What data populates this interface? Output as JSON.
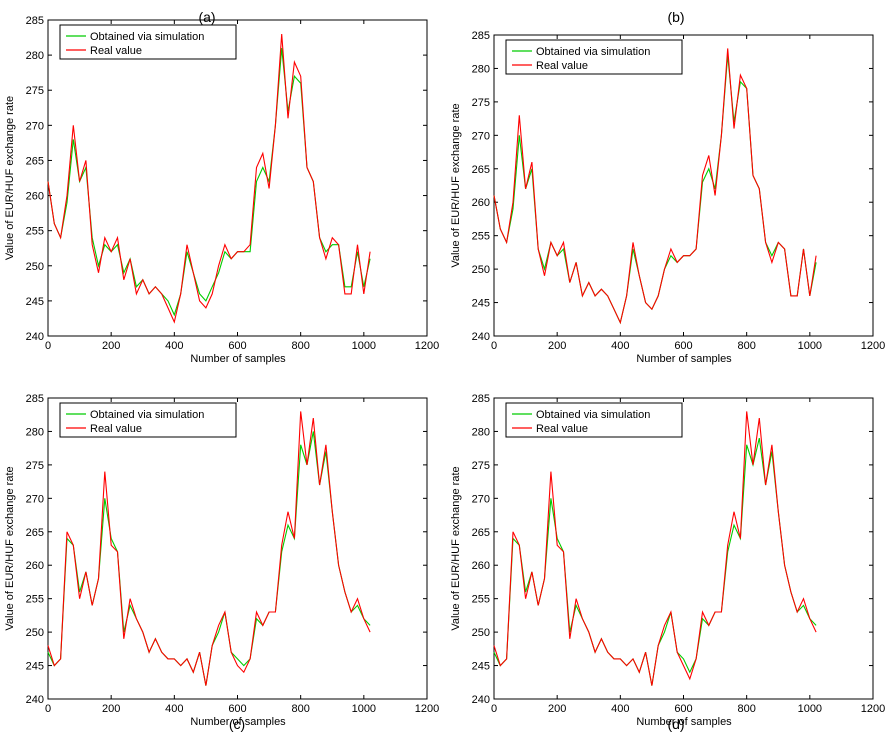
{
  "chart_data": [
    {
      "type": "line",
      "panel_label": "(a)",
      "xlabel": "Number of samples",
      "ylabel": "Value of EUR/HUF exchange rate",
      "xlim": [
        0,
        1200
      ],
      "ylim": [
        240,
        285
      ],
      "xticks": [
        0,
        200,
        400,
        600,
        800,
        1000,
        1200
      ],
      "yticks": [
        240,
        245,
        250,
        255,
        260,
        265,
        270,
        275,
        280,
        285
      ],
      "legend": {
        "position": "top-left",
        "entries": [
          "Obtained via simulation",
          "Real value"
        ]
      },
      "grid": false,
      "series": [
        {
          "name": "Obtained via simulation",
          "color": "#00cc00",
          "x": [
            0,
            20,
            40,
            60,
            80,
            100,
            120,
            140,
            160,
            180,
            200,
            220,
            240,
            260,
            280,
            300,
            320,
            340,
            360,
            380,
            400,
            420,
            440,
            460,
            480,
            500,
            520,
            540,
            560,
            580,
            600,
            620,
            640,
            660,
            680,
            700,
            720,
            740,
            760,
            780,
            800,
            820,
            840,
            860,
            880,
            900,
            920,
            940,
            960,
            980,
            1000,
            1020
          ],
          "y": [
            262,
            256,
            254,
            259,
            268,
            262,
            264,
            254,
            250,
            253,
            252,
            253,
            249,
            251,
            247,
            248,
            246,
            247,
            246,
            245,
            243,
            246,
            252,
            249,
            246,
            245,
            247,
            249,
            252,
            251,
            252,
            252,
            252,
            262,
            264,
            262,
            270,
            281,
            272,
            277,
            276,
            264,
            262,
            254,
            252,
            253,
            253,
            247,
            247,
            252,
            247,
            251
          ]
        },
        {
          "name": "Real value",
          "color": "#ff0000",
          "x": [
            0,
            20,
            40,
            60,
            80,
            100,
            120,
            140,
            160,
            180,
            200,
            220,
            240,
            260,
            280,
            300,
            320,
            340,
            360,
            380,
            400,
            420,
            440,
            460,
            480,
            500,
            520,
            540,
            560,
            580,
            600,
            620,
            640,
            660,
            680,
            700,
            720,
            740,
            760,
            780,
            800,
            820,
            840,
            860,
            880,
            900,
            920,
            940,
            960,
            980,
            1000,
            1020
          ],
          "y": [
            262,
            256,
            254,
            260,
            270,
            262,
            265,
            253,
            249,
            254,
            252,
            254,
            248,
            251,
            246,
            248,
            246,
            247,
            246,
            244,
            242,
            246,
            253,
            249,
            245,
            244,
            246,
            250,
            253,
            251,
            252,
            252,
            253,
            264,
            266,
            261,
            270,
            283,
            271,
            279,
            277,
            264,
            262,
            254,
            251,
            254,
            253,
            246,
            246,
            253,
            246,
            252
          ]
        }
      ]
    },
    {
      "type": "line",
      "panel_label": "(b)",
      "xlabel": "Number of samples",
      "ylabel": "Value of EUR/HUF exchange rate",
      "xlim": [
        0,
        1200
      ],
      "ylim": [
        240,
        285
      ],
      "xticks": [
        0,
        200,
        400,
        600,
        800,
        1000,
        1200
      ],
      "yticks": [
        240,
        245,
        250,
        255,
        260,
        265,
        270,
        275,
        280,
        285
      ],
      "legend": {
        "position": "top-left",
        "entries": [
          "Obtained via simulation",
          "Real value"
        ]
      },
      "grid": false,
      "series": [
        {
          "name": "Obtained via simulation",
          "color": "#00cc00",
          "x": [
            0,
            20,
            40,
            60,
            80,
            100,
            120,
            140,
            160,
            180,
            200,
            220,
            240,
            260,
            280,
            300,
            320,
            340,
            360,
            380,
            400,
            420,
            440,
            460,
            480,
            500,
            520,
            540,
            560,
            580,
            600,
            620,
            640,
            660,
            680,
            700,
            720,
            740,
            760,
            780,
            800,
            820,
            840,
            860,
            880,
            900,
            920,
            940,
            960,
            980,
            1000,
            1020
          ],
          "y": [
            261,
            256,
            254,
            259,
            270,
            262,
            265,
            253,
            250,
            254,
            252,
            253,
            248,
            251,
            246,
            248,
            246,
            247,
            246,
            244,
            242,
            246,
            253,
            249,
            245,
            244,
            246,
            250,
            252,
            251,
            252,
            252,
            253,
            263,
            265,
            262,
            270,
            282,
            272,
            278,
            277,
            264,
            262,
            254,
            252,
            254,
            253,
            246,
            246,
            253,
            246,
            251
          ]
        },
        {
          "name": "Real value",
          "color": "#ff0000",
          "x": [
            0,
            20,
            40,
            60,
            80,
            100,
            120,
            140,
            160,
            180,
            200,
            220,
            240,
            260,
            280,
            300,
            320,
            340,
            360,
            380,
            400,
            420,
            440,
            460,
            480,
            500,
            520,
            540,
            560,
            580,
            600,
            620,
            640,
            660,
            680,
            700,
            720,
            740,
            760,
            780,
            800,
            820,
            840,
            860,
            880,
            900,
            920,
            940,
            960,
            980,
            1000,
            1020
          ],
          "y": [
            261,
            256,
            254,
            260,
            273,
            262,
            266,
            253,
            249,
            254,
            252,
            254,
            248,
            251,
            246,
            248,
            246,
            247,
            246,
            244,
            242,
            246,
            254,
            249,
            245,
            244,
            246,
            250,
            253,
            251,
            252,
            252,
            253,
            264,
            267,
            261,
            270,
            283,
            271,
            279,
            277,
            264,
            262,
            254,
            251,
            254,
            253,
            246,
            246,
            253,
            246,
            252
          ]
        }
      ]
    },
    {
      "type": "line",
      "panel_label": "(c)",
      "xlabel": "Number of samples",
      "ylabel": "Value of EUR/HUF exchange rate",
      "xlim": [
        0,
        1200
      ],
      "ylim": [
        240,
        285
      ],
      "xticks": [
        0,
        200,
        400,
        600,
        800,
        1000,
        1200
      ],
      "yticks": [
        240,
        245,
        250,
        255,
        260,
        265,
        270,
        275,
        280,
        285
      ],
      "legend": {
        "position": "top-left",
        "entries": [
          "Obtained via simulation",
          "Real value"
        ]
      },
      "grid": false,
      "series": [
        {
          "name": "Obtained via simulation",
          "color": "#00cc00",
          "x": [
            0,
            20,
            40,
            60,
            80,
            100,
            120,
            140,
            160,
            180,
            200,
            220,
            240,
            260,
            280,
            300,
            320,
            340,
            360,
            380,
            400,
            420,
            440,
            460,
            480,
            500,
            520,
            540,
            560,
            580,
            600,
            620,
            640,
            660,
            680,
            700,
            720,
            740,
            760,
            780,
            800,
            820,
            840,
            860,
            880,
            900,
            920,
            940,
            960,
            980,
            1000,
            1020
          ],
          "y": [
            247,
            245,
            246,
            264,
            263,
            256,
            259,
            254,
            258,
            270,
            264,
            262,
            250,
            254,
            252,
            250,
            247,
            249,
            247,
            246,
            246,
            245,
            246,
            244,
            247,
            242,
            248,
            250,
            253,
            247,
            246,
            245,
            246,
            252,
            251,
            253,
            253,
            262,
            266,
            264,
            278,
            275,
            280,
            272,
            277,
            268,
            260,
            256,
            253,
            254,
            252,
            251
          ]
        },
        {
          "name": "Real value",
          "color": "#ff0000",
          "x": [
            0,
            20,
            40,
            60,
            80,
            100,
            120,
            140,
            160,
            180,
            200,
            220,
            240,
            260,
            280,
            300,
            320,
            340,
            360,
            380,
            400,
            420,
            440,
            460,
            480,
            500,
            520,
            540,
            560,
            580,
            600,
            620,
            640,
            660,
            680,
            700,
            720,
            740,
            760,
            780,
            800,
            820,
            840,
            860,
            880,
            900,
            920,
            940,
            960,
            980,
            1000,
            1020
          ],
          "y": [
            248,
            245,
            246,
            265,
            263,
            255,
            259,
            254,
            258,
            274,
            263,
            262,
            249,
            255,
            252,
            250,
            247,
            249,
            247,
            246,
            246,
            245,
            246,
            244,
            247,
            242,
            248,
            251,
            253,
            247,
            245,
            244,
            246,
            253,
            251,
            253,
            253,
            263,
            268,
            264,
            283,
            275,
            282,
            272,
            278,
            268,
            260,
            256,
            253,
            255,
            252,
            250
          ]
        }
      ]
    },
    {
      "type": "line",
      "panel_label": "(d)",
      "xlabel": "Number of samples",
      "ylabel": "Value of EUR/HUF exchange rate",
      "xlim": [
        0,
        1200
      ],
      "ylim": [
        240,
        285
      ],
      "xticks": [
        0,
        200,
        400,
        600,
        800,
        1000,
        1200
      ],
      "yticks": [
        240,
        245,
        250,
        255,
        260,
        265,
        270,
        275,
        280,
        285
      ],
      "legend": {
        "position": "top-left",
        "entries": [
          "Obtained via simulation",
          "Real value"
        ]
      },
      "grid": false,
      "series": [
        {
          "name": "Obtained via simulation",
          "color": "#00cc00",
          "x": [
            0,
            20,
            40,
            60,
            80,
            100,
            120,
            140,
            160,
            180,
            200,
            220,
            240,
            260,
            280,
            300,
            320,
            340,
            360,
            380,
            400,
            420,
            440,
            460,
            480,
            500,
            520,
            540,
            560,
            580,
            600,
            620,
            640,
            660,
            680,
            700,
            720,
            740,
            760,
            780,
            800,
            820,
            840,
            860,
            880,
            900,
            920,
            940,
            960,
            980,
            1000,
            1020
          ],
          "y": [
            247,
            245,
            246,
            264,
            263,
            256,
            259,
            254,
            258,
            270,
            264,
            262,
            250,
            254,
            252,
            250,
            247,
            249,
            247,
            246,
            246,
            245,
            246,
            244,
            247,
            242,
            248,
            250,
            253,
            247,
            246,
            244,
            246,
            252,
            251,
            253,
            253,
            262,
            266,
            264,
            278,
            275,
            279,
            272,
            277,
            268,
            260,
            256,
            253,
            254,
            252,
            251
          ]
        },
        {
          "name": "Real value",
          "color": "#ff0000",
          "x": [
            0,
            20,
            40,
            60,
            80,
            100,
            120,
            140,
            160,
            180,
            200,
            220,
            240,
            260,
            280,
            300,
            320,
            340,
            360,
            380,
            400,
            420,
            440,
            460,
            480,
            500,
            520,
            540,
            560,
            580,
            600,
            620,
            640,
            660,
            680,
            700,
            720,
            740,
            760,
            780,
            800,
            820,
            840,
            860,
            880,
            900,
            920,
            940,
            960,
            980,
            1000,
            1020
          ],
          "y": [
            248,
            245,
            246,
            265,
            263,
            255,
            259,
            254,
            258,
            274,
            263,
            262,
            249,
            255,
            252,
            250,
            247,
            249,
            247,
            246,
            246,
            245,
            246,
            244,
            247,
            242,
            248,
            251,
            253,
            247,
            245,
            243,
            246,
            253,
            251,
            253,
            253,
            263,
            268,
            264,
            283,
            275,
            282,
            272,
            278,
            268,
            260,
            256,
            253,
            255,
            252,
            250
          ]
        }
      ]
    }
  ]
}
